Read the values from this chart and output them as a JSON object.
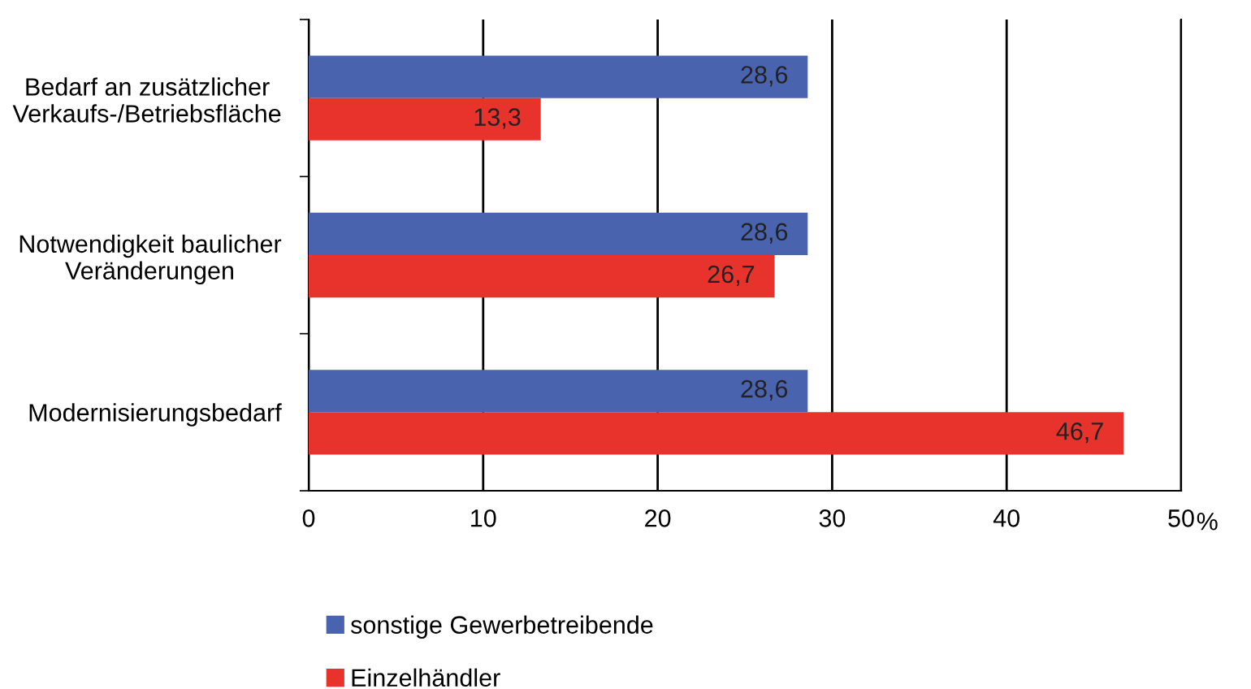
{
  "chart_data": {
    "type": "bar",
    "orientation": "horizontal",
    "categories": [
      "Bedarf an zusätzlicher\nVerkaufs-/Betriebsfläche",
      "Notwendigkeit baulicher\nVeränderungen",
      "Modernisierungsbedarf"
    ],
    "series": [
      {
        "name": "sonstige Gewerbetreibende",
        "color": "#4a63ae",
        "values": [
          28.6,
          28.6,
          28.6
        ],
        "value_labels": [
          "28,6",
          "28,6",
          "28,6"
        ]
      },
      {
        "name": "Einzelhändler",
        "color": "#e8322c",
        "values": [
          13.3,
          26.7,
          46.7
        ],
        "value_labels": [
          "13,3",
          "26,7",
          "46,7"
        ]
      }
    ],
    "xlim": [
      0,
      50
    ],
    "xticks": [
      0,
      10,
      20,
      30,
      40,
      50
    ],
    "xlabel": "%",
    "grid": "x",
    "legend": "bottom"
  }
}
